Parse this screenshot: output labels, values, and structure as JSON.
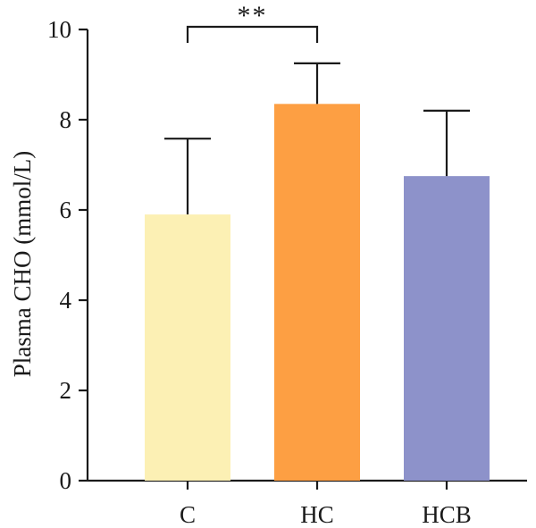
{
  "chart_data": {
    "type": "bar",
    "categories": [
      "C",
      "HC",
      "HCB"
    ],
    "values": [
      5.9,
      8.35,
      6.75
    ],
    "errors": [
      1.68,
      0.9,
      1.45
    ],
    "colors": [
      "#FCF0B4",
      "#FD9F43",
      "#8D92CA"
    ],
    "ylabel": "Plasma CHO (mmol/L)",
    "xlabel": "",
    "ylim": [
      0,
      10
    ],
    "yticks": [
      "0",
      "2",
      "4",
      "6",
      "8",
      "10"
    ],
    "grid": false,
    "significance": [
      {
        "from": "C",
        "to": "HC",
        "label": "**"
      }
    ]
  }
}
